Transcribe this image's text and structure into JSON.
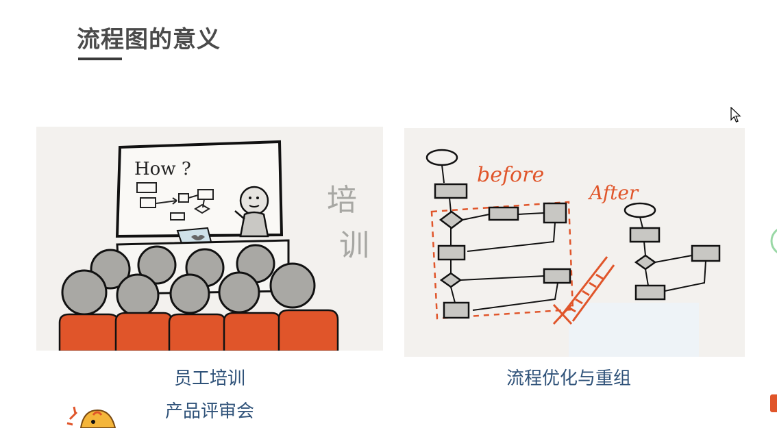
{
  "page": {
    "title": "流程图的意义"
  },
  "cards": [
    {
      "image_labels": {
        "board_text": "How ?",
        "side_text_1": "培",
        "side_text_2": "训"
      },
      "captions": [
        "员工培训",
        "产品评审会"
      ]
    },
    {
      "image_labels": {
        "before_text": "before",
        "after_text": "After"
      },
      "captions": [
        "流程优化与重组"
      ]
    }
  ],
  "colors": {
    "title": "#4a4a4a",
    "caption": "#2f5279",
    "accent_orange": "#e0552a",
    "sketch_gray": "#a7a7a3"
  }
}
